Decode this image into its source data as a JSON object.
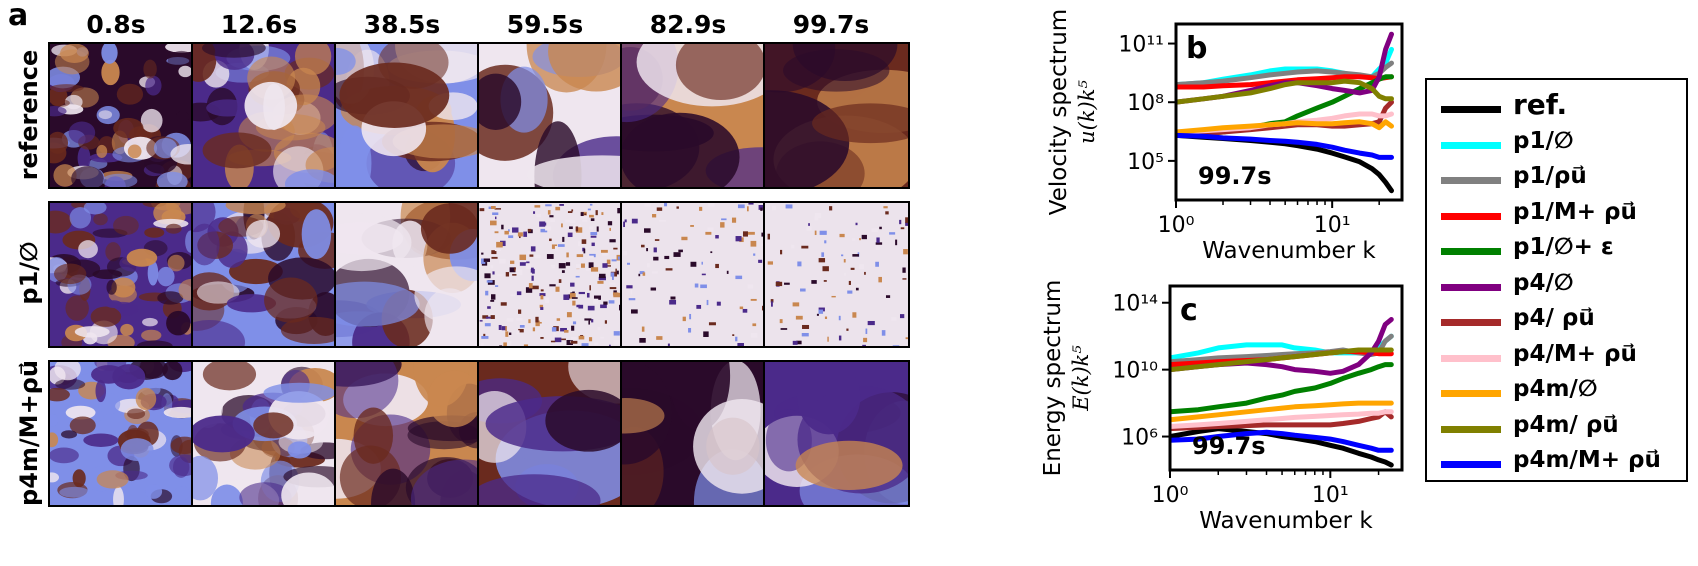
{
  "panel_a": {
    "letter": "a",
    "times": [
      "0.8s",
      "12.6s",
      "38.5s",
      "59.5s",
      "82.9s",
      "99.7s"
    ],
    "rows": [
      {
        "label": "reference"
      },
      {
        "label": "p1/∅"
      },
      {
        "label": "p4m/M+ρu⃗"
      }
    ],
    "colormap": {
      "dark": "#2a0a2a",
      "purple": "#4b2a8a",
      "blue": "#7f8fe8",
      "light": "#efe6ef",
      "orange": "#c9874f",
      "brown": "#6a2a1e"
    }
  },
  "chart_data": [
    {
      "type": "line",
      "panel": "b",
      "time_label": "99.7s",
      "xlabel": "Wavenumber k",
      "ylabel_text": "Velocity spectrum",
      "ylabel_math": "u(k)k⁵",
      "x_scale": "log",
      "y_scale": "log",
      "xticks": [
        "10⁰",
        "10¹"
      ],
      "yticks": [
        "10⁵",
        "10⁸",
        "10¹¹"
      ],
      "xlim": [
        1,
        28
      ],
      "ylim": [
        1000,
        1000000000000
      ],
      "x": [
        1,
        1.5,
        2,
        3,
        4,
        5,
        6,
        8,
        10,
        12,
        15,
        18,
        20,
        22,
        24
      ],
      "series": [
        {
          "name": "ref.",
          "color": "#000000",
          "values": [
            2000000,
            1600000,
            1400000,
            1100000,
            900000,
            750000,
            600000,
            400000,
            250000,
            160000,
            90000,
            40000,
            20000,
            8000,
            3000
          ]
        },
        {
          "name": "p1/∅",
          "color": "#00ffff",
          "values": [
            800000000,
            1000000000,
            1500000000,
            2500000000,
            4000000000,
            5000000000,
            5000000000,
            5000000000,
            4000000000,
            3000000000,
            2000000000,
            2000000000,
            5000000000,
            10000000000,
            50000000000
          ]
        },
        {
          "name": "p1/ρu⃗",
          "color": "#808080",
          "values": [
            800000000,
            1000000000,
            1200000000,
            1800000000,
            2500000000,
            3000000000,
            3500000000,
            4000000000,
            3500000000,
            3000000000,
            2500000000,
            2000000000,
            3000000000,
            6000000000,
            10000000000
          ]
        },
        {
          "name": "p1/M+ ρu⃗",
          "color": "#ff0000",
          "values": [
            600000000,
            600000000,
            700000000,
            800000000,
            1000000000,
            1200000000,
            1400000000,
            1600000000,
            1800000000,
            2000000000,
            2000000000,
            1800000000,
            1600000000,
            1800000000,
            2000000000
          ]
        },
        {
          "name": "p1/∅+ ε",
          "color": "#008000",
          "values": [
            2000000,
            2500000,
            3000000,
            5000000,
            8000000,
            10000000,
            20000000,
            50000000,
            100000000,
            200000000,
            500000000,
            1000000000,
            1500000000,
            2000000000,
            2000000000
          ]
        },
        {
          "name": "p4/∅",
          "color": "#800080",
          "values": [
            100000000,
            150000000,
            200000000,
            400000000,
            700000000,
            1000000000,
            1000000000,
            700000000,
            500000000,
            400000000,
            300000000,
            400000000,
            2000000000,
            50000000000,
            300000000000
          ]
        },
        {
          "name": "p4/ρu⃗",
          "color": "#a52a2a",
          "values": [
            2000000,
            2500000,
            3000000,
            4000000,
            5000000,
            6000000,
            7000000,
            7000000,
            6000000,
            6000000,
            7000000,
            8000000,
            10000000,
            50000000,
            100000000
          ]
        },
        {
          "name": "p4/M+ ρu⃗",
          "color": "#ffc0cb",
          "values": [
            3000000,
            3500000,
            4000000,
            5000000,
            7000000,
            8000000,
            10000000,
            12000000,
            15000000,
            20000000,
            25000000,
            25000000,
            20000000,
            20000000,
            25000000
          ]
        },
        {
          "name": "p4m/∅",
          "color": "#ffa500",
          "values": [
            3000000,
            4000000,
            5000000,
            6000000,
            7000000,
            8000000,
            9000000,
            8000000,
            8000000,
            9000000,
            10000000,
            8000000,
            5000000,
            10000000,
            6000000
          ]
        },
        {
          "name": "p4m/ ρu⃗",
          "color": "#808000",
          "values": [
            100000000,
            150000000,
            200000000,
            300000000,
            500000000,
            800000000,
            1000000000,
            1000000000,
            1000000000,
            1200000000,
            1000000000,
            500000000,
            200000000,
            150000000,
            150000000
          ]
        },
        {
          "name": "p4m/M+ ρu⃗",
          "color": "#0000ff",
          "values": [
            2000000,
            1800000,
            1500000,
            1300000,
            1100000,
            1000000,
            900000,
            700000,
            500000,
            350000,
            250000,
            200000,
            150000,
            150000,
            150000
          ]
        }
      ]
    },
    {
      "type": "line",
      "panel": "c",
      "time_label": "99.7s",
      "xlabel": "Wavenumber k",
      "ylabel_text": "Energy spectrum",
      "ylabel_math": "E(k)k⁵",
      "x_scale": "log",
      "y_scale": "log",
      "xticks": [
        "10⁰",
        "10¹"
      ],
      "yticks": [
        "10⁶",
        "10¹⁰",
        "10¹⁴"
      ],
      "xlim": [
        1,
        28
      ],
      "ylim": [
        10000,
        1000000000000000
      ],
      "x": [
        1,
        1.5,
        2,
        3,
        4,
        5,
        6,
        8,
        10,
        12,
        15,
        18,
        20,
        22,
        24
      ],
      "series": [
        {
          "name": "ref.",
          "color": "#000000",
          "values": [
            1000000,
            2000000,
            3000000,
            2000000,
            1500000,
            1000000,
            800000,
            500000,
            300000,
            200000,
            100000,
            60000,
            40000,
            30000,
            20000
          ]
        },
        {
          "name": "p1/∅",
          "color": "#00ffff",
          "values": [
            50000000000,
            100000000000,
            200000000000,
            300000000000,
            300000000000,
            300000000000,
            200000000000,
            150000000000,
            100000000000,
            100000000000,
            100000000000,
            100000000000,
            200000000000,
            500000000000,
            1000000000000
          ]
        },
        {
          "name": "p1/ρu⃗",
          "color": "#808080",
          "values": [
            30000000000,
            40000000000,
            50000000000,
            60000000000,
            70000000000,
            80000000000,
            90000000000,
            100000000000,
            120000000000,
            150000000000,
            100000000000,
            80000000000,
            100000000000,
            500000000000,
            1000000000000
          ]
        },
        {
          "name": "p1/M+ ρu⃗",
          "color": "#ff0000",
          "values": [
            20000000000,
            25000000000,
            30000000000,
            35000000000,
            40000000000,
            50000000000,
            60000000000,
            80000000000,
            100000000000,
            120000000000,
            120000000000,
            100000000000,
            90000000000,
            90000000000,
            90000000000
          ]
        },
        {
          "name": "p1/∅+ ε",
          "color": "#008000",
          "values": [
            30000000,
            40000000,
            60000000,
            100000000,
            200000000,
            300000000,
            500000000,
            800000000,
            1500000000,
            3000000000,
            6000000000,
            10000000000,
            15000000000,
            20000000000,
            20000000000
          ]
        },
        {
          "name": "p4/∅",
          "color": "#800080",
          "values": [
            10000000000,
            15000000000,
            20000000000,
            25000000000,
            20000000000,
            15000000000,
            10000000000,
            8000000000,
            6000000000,
            8000000000,
            20000000000,
            100000000000,
            500000000000,
            5000000000000,
            10000000000000
          ]
        },
        {
          "name": "p4/ρu⃗",
          "color": "#a52a2a",
          "values": [
            3000000,
            3500000,
            4000000,
            4500000,
            5000000,
            5000000,
            5000000,
            5000000,
            5000000,
            6000000,
            8000000,
            12000000,
            15000000,
            30000000,
            15000000
          ]
        },
        {
          "name": "p4/M+ ρu⃗",
          "color": "#ffc0cb",
          "values": [
            4000000,
            5000000,
            6000000,
            8000000,
            10000000,
            12000000,
            14000000,
            16000000,
            18000000,
            20000000,
            22000000,
            25000000,
            25000000,
            30000000,
            30000000
          ]
        },
        {
          "name": "p4m/∅",
          "color": "#ffa500",
          "values": [
            10000000,
            15000000,
            20000000,
            30000000,
            40000000,
            50000000,
            60000000,
            70000000,
            80000000,
            90000000,
            100000000,
            100000000,
            100000000,
            100000000,
            100000000
          ]
        },
        {
          "name": "p4m/ ρu⃗",
          "color": "#808000",
          "values": [
            10000000000,
            15000000000,
            20000000000,
            30000000000,
            40000000000,
            50000000000,
            60000000000,
            80000000000,
            100000000000,
            120000000000,
            150000000000,
            150000000000,
            150000000000,
            150000000000,
            150000000000
          ]
        },
        {
          "name": "p4m/M+ ρu⃗",
          "color": "#0000ff",
          "values": [
            600000,
            700000,
            1000000,
            1500000,
            1800000,
            1500000,
            1200000,
            900000,
            700000,
            500000,
            300000,
            200000,
            150000,
            150000,
            150000
          ]
        }
      ]
    }
  ],
  "legend": {
    "items": [
      {
        "label": "ref.",
        "color": "#000000"
      },
      {
        "label": "p1/∅",
        "color": "#00ffff"
      },
      {
        "label": "p1/ρu⃗",
        "color": "#808080"
      },
      {
        "label": "p1/M+ ρu⃗",
        "color": "#ff0000"
      },
      {
        "label": "p1/∅+ ε",
        "color": "#008000"
      },
      {
        "label": "p4/∅",
        "color": "#800080"
      },
      {
        "label": "p4/ ρu⃗",
        "color": "#a52a2a"
      },
      {
        "label": "p4/M+ ρu⃗",
        "color": "#ffc0cb"
      },
      {
        "label": "p4m/∅",
        "color": "#ffa500"
      },
      {
        "label": "p4m/ ρu⃗",
        "color": "#808000"
      },
      {
        "label": "p4m/M+ ρu⃗",
        "color": "#0000ff"
      }
    ]
  }
}
